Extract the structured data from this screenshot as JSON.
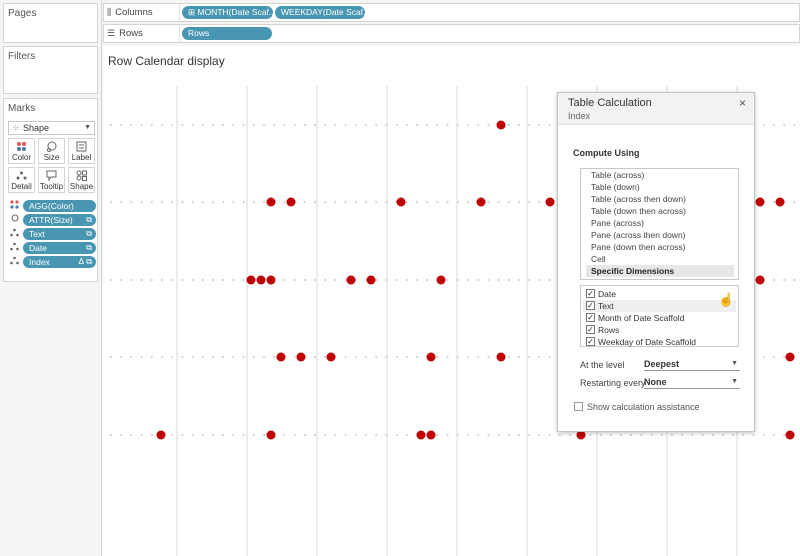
{
  "panels": {
    "pages_title": "Pages",
    "filters_title": "Filters",
    "marks_title": "Marks"
  },
  "marks": {
    "mark_type": "Shape",
    "buttons": [
      {
        "label": "Color",
        "icon": "color-dots-icon"
      },
      {
        "label": "Size",
        "icon": "size-icon"
      },
      {
        "label": "Label",
        "icon": "label-icon"
      },
      {
        "label": "Detail",
        "icon": "detail-icon"
      },
      {
        "label": "Tooltip",
        "icon": "tooltip-icon"
      },
      {
        "label": "Shape",
        "icon": "shape-icon"
      }
    ],
    "pills": [
      {
        "label": "AGG(Color)",
        "icon": "color-dots-icon"
      },
      {
        "label": "ATTR(Size)",
        "icon": "size-icon"
      },
      {
        "label": "Text",
        "icon": "detail-icon"
      },
      {
        "label": "Date",
        "icon": "detail-icon"
      },
      {
        "label": "Index",
        "icon": "detail-icon",
        "badge": "Δ"
      }
    ]
  },
  "shelves": {
    "columns_label": "Columns",
    "rows_label": "Rows",
    "column_pills": [
      "MONTH(Date Scaf..",
      "WEEKDAY(Date Scaf.."
    ],
    "row_pills": [
      "Rows"
    ]
  },
  "viz": {
    "title": "Row Calendar display",
    "dot_color": "#c00000",
    "grid_color": "#d9d9d9"
  },
  "dialog": {
    "title": "Table Calculation",
    "subtitle": "Index",
    "close_icon": "×",
    "compute_using_label": "Compute Using",
    "options": [
      "Table (across)",
      "Table (down)",
      "Table (across then down)",
      "Table (down then across)",
      "Pane (across)",
      "Pane (across then down)",
      "Pane (down then across)",
      "Cell",
      "Specific Dimensions"
    ],
    "selected_option": "Specific Dimensions",
    "dimensions": [
      {
        "label": "Date",
        "checked": true
      },
      {
        "label": "Text",
        "checked": true
      },
      {
        "label": "Month of Date Scaffold",
        "checked": true
      },
      {
        "label": "Rows",
        "checked": true
      },
      {
        "label": "Weekday of Date Scaffold",
        "checked": true
      }
    ],
    "at_level_label": "At the level",
    "at_level_value": "Deepest",
    "restarting_label": "Restarting every",
    "restarting_value": "None",
    "assistance_label": "Show calculation assistance",
    "assistance_checked": false
  }
}
